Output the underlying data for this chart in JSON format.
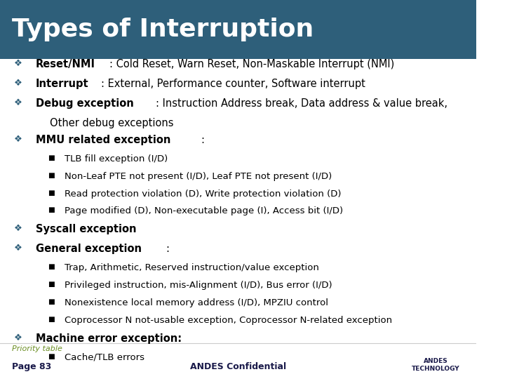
{
  "title": "Types of Interruption",
  "title_bg": "#2e5f7a",
  "title_color": "#ffffff",
  "title_fontsize": 26,
  "bg_color": "#ffffff",
  "body_color": "#000000",
  "bullet_color": "#2e5f7a",
  "footer_link_color": "#6b8e23",
  "footer_text_color": "#1a1a4a",
  "footer_link": "Priority table",
  "footer_page": "Page 83",
  "footer_center": "ANDES Confidential",
  "main_font_size": 10.5,
  "sub_font_size": 9.5,
  "lines": [
    {
      "type": "bullet",
      "bold_part": "Reset/NMI",
      "rest": ": Cold Reset, Warn Reset, Non-Maskable Interrupt (NMI)",
      "indent": 0
    },
    {
      "type": "bullet",
      "bold_part": "Interrupt",
      "rest": ": External, Performance counter, Software interrupt",
      "indent": 0
    },
    {
      "type": "bullet",
      "bold_part": "Debug exception",
      "rest": ": Instruction Address break, Data address & value break,",
      "indent": 0
    },
    {
      "type": "plain",
      "text": "Other debug exceptions",
      "indent": 1
    },
    {
      "type": "bullet",
      "bold_part": "MMU related exception",
      "rest": ":",
      "indent": 0
    },
    {
      "type": "sub",
      "text": "TLB fill exception (I/D)",
      "indent": 2
    },
    {
      "type": "sub",
      "text": "Non-Leaf PTE not present (I/D), Leaf PTE not present (I/D)",
      "indent": 2
    },
    {
      "type": "sub",
      "text": "Read protection violation (D), Write protection violation (D)",
      "indent": 2
    },
    {
      "type": "sub",
      "text": "Page modified (D), Non-executable page (I), Access bit (I/D)",
      "indent": 2
    },
    {
      "type": "bullet",
      "bold_part": "Syscall exception",
      "rest": "",
      "indent": 0
    },
    {
      "type": "bullet",
      "bold_part": "General exception",
      "rest": ":",
      "indent": 0
    },
    {
      "type": "sub",
      "text": "Trap, Arithmetic, Reserved instruction/value exception",
      "indent": 2
    },
    {
      "type": "sub",
      "text": "Privileged instruction, mis-Alignment (I/D), Bus error (I/D)",
      "indent": 2
    },
    {
      "type": "sub",
      "text": "Nonexistence local memory address (I/D), MPZIU control",
      "indent": 2
    },
    {
      "type": "sub",
      "text": "Coprocessor N not-usable exception, Coprocessor N-related exception",
      "indent": 2
    },
    {
      "type": "bullet",
      "bold_part": "Machine error exception:",
      "rest": "",
      "indent": 0,
      "bold_full": true
    },
    {
      "type": "sub",
      "text": "Cache/TLB errors",
      "indent": 2
    }
  ]
}
